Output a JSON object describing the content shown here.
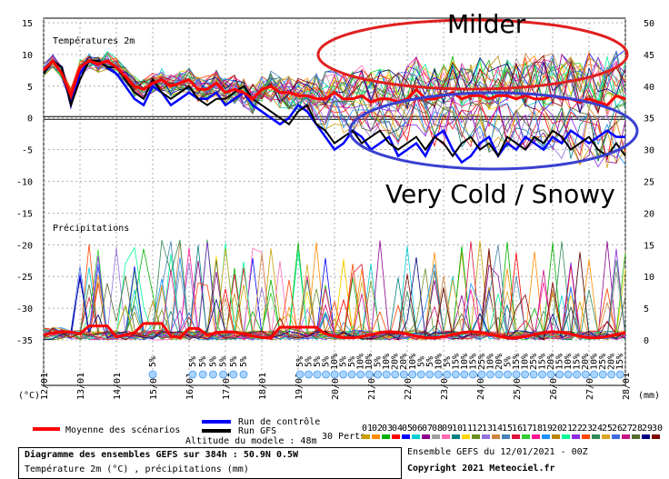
{
  "chart_data": {
    "type": "line",
    "title": "Diagramme des ensembles GEFS sur 384h : 50.9N 0.5W",
    "subtitle": "Température 2m (°C) , précipitations (mm)",
    "upper_panel_label": "Températures 2m",
    "lower_panel_label": "Précipitations",
    "left_axis_unit": "(°C)",
    "right_axis_unit": "(mm)",
    "left_ticks": [
      "15",
      "10",
      "5",
      "0",
      "-5",
      "-10",
      "-15",
      "-20",
      "-25",
      "-30",
      "-35"
    ],
    "right_ticks": [
      "50",
      "45",
      "40",
      "35",
      "30",
      "25",
      "20",
      "15",
      "10",
      "5",
      "0"
    ],
    "ylim_temperature": [
      -35,
      15
    ],
    "ylim_precip": [
      0,
      50
    ],
    "x_ticks": [
      "12/01",
      "13/01",
      "14/01",
      "15/01",
      "16/01",
      "17/01",
      "18/01",
      "19/01",
      "20/01",
      "21/01",
      "22/01",
      "23/01",
      "24/01",
      "25/01",
      "26/01",
      "27/01",
      "28/01"
    ],
    "grid": true,
    "series": [
      {
        "name": "Moyenne des scénarios",
        "color": "#ff0000",
        "temp": [
          7.5,
          9,
          7,
          3.5,
          8,
          9,
          8.5,
          9,
          8,
          6.5,
          5,
          4.5,
          5.5,
          6,
          5,
          5.5,
          6,
          4.5,
          4.5,
          5.5,
          4,
          4.5,
          4,
          3,
          4.5,
          5,
          4,
          4,
          3.5,
          3.5,
          3,
          3,
          4,
          3,
          3,
          3.5,
          2.5,
          3,
          3,
          2.5,
          3,
          4.5,
          3,
          3,
          3.5,
          4,
          3,
          3.5,
          3.5,
          3,
          3.5,
          3.5,
          3,
          3.5,
          3,
          3,
          3.5,
          3,
          3,
          2.5,
          3,
          2.5,
          2,
          3.5,
          3
        ]
      },
      {
        "name": "Run de contrôle",
        "color": "#0000ff",
        "temp": [
          7,
          9,
          8,
          2,
          7,
          9,
          9,
          8,
          7,
          5,
          3,
          2,
          5,
          4,
          2,
          3,
          4,
          3,
          3,
          4,
          2,
          3,
          4,
          2,
          1,
          0,
          -1,
          0,
          2,
          1,
          -1,
          -3,
          -5,
          -4,
          -2,
          -3,
          -5,
          -4,
          -3,
          -6,
          -5,
          -4,
          -6,
          -3,
          -2,
          -5,
          -7,
          -6,
          -4,
          -3,
          -6,
          -4,
          -5,
          -3,
          -4,
          -5,
          -3,
          -4,
          -2,
          -3,
          -4,
          -3,
          -2,
          -3,
          -3
        ]
      },
      {
        "name": "Run GFS",
        "color": "#000000",
        "temp": [
          7,
          9,
          8,
          2,
          6,
          9,
          9,
          8,
          8,
          6,
          4,
          3,
          6,
          4,
          3,
          4,
          5,
          3,
          2,
          3,
          3,
          4,
          5,
          3,
          2,
          1,
          0,
          -1,
          1,
          2,
          -1,
          -2,
          -4,
          -3,
          -2,
          -4,
          -3,
          -2,
          -4,
          -5,
          -4,
          -3,
          -5,
          -3,
          -4,
          -6,
          -4,
          -3,
          -5,
          -4,
          -6,
          -3,
          -4,
          -5,
          -3,
          -4,
          -2,
          -3,
          -5,
          -4,
          -3,
          -5,
          -6,
          -4,
          -6
        ]
      }
    ],
    "perturbations_label": "30 Perts.",
    "perturbation_numbers": [
      "01",
      "02",
      "03",
      "04",
      "05",
      "06",
      "07",
      "08",
      "09",
      "10",
      "11",
      "12",
      "13",
      "14",
      "15",
      "16",
      "17",
      "18",
      "19",
      "20",
      "21",
      "22",
      "23",
      "24",
      "25",
      "26",
      "27",
      "28",
      "29",
      "30"
    ],
    "perturbation_colors": [
      "#c8a000",
      "#ff8c00",
      "#00b000",
      "#ff0000",
      "#0000ff",
      "#00ced1",
      "#8b008b",
      "#a0a0a0",
      "#ff69b4",
      "#008080",
      "#ffd700",
      "#6b8e23",
      "#9370db",
      "#cd853f",
      "#4682b4",
      "#dc143c",
      "#32cd32",
      "#ff1493",
      "#1e90ff",
      "#b8860b",
      "#00fa9a",
      "#8a2be2",
      "#ff4500",
      "#2e8b57",
      "#daa520",
      "#4169e1",
      "#c71585",
      "#556b2f",
      "#000080",
      "#800000"
    ],
    "snow_percent_labels": [
      "5%",
      "5%",
      "5%",
      "5%",
      "5%",
      "5%",
      "5%",
      "5%",
      "5%",
      "5%",
      "5%",
      "10%",
      "5%",
      "5%",
      "10%",
      "10%",
      "5%",
      "10%",
      "20%",
      "20%",
      "10%",
      "5%",
      "5%",
      "10%",
      "5%",
      "15%",
      "10%",
      "15%",
      "25%",
      "10%",
      "20%",
      "5%",
      "15%",
      "10%",
      "25%",
      "15%",
      "20%",
      "15%",
      "10%",
      "15%",
      "20%",
      "10%",
      "25%",
      "20%",
      "15%"
    ],
    "annotations": [
      "Milder",
      "Very Cold / Snowy"
    ]
  },
  "legend": {
    "mean_label": "Moyenne des scénarios",
    "control_label": "Run de contrôle",
    "gfs_label": "Run GFS",
    "altitude": "Altitude du modele : 48m",
    "perts_label": "30 Perts."
  },
  "footer": {
    "title": "Diagramme des ensembles GEFS sur 384h : 50.9N 0.5W",
    "subtitle": "Température 2m (°C) , précipitations (mm)",
    "run_info": "Ensemble GEFS du 12/01/2021 - 00Z",
    "copyright": "Copyright 2021 Meteociel.fr"
  }
}
